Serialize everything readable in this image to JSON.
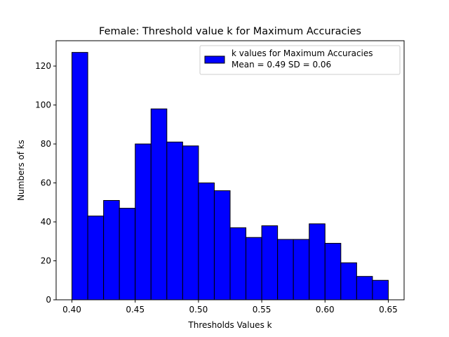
{
  "chart_data": {
    "type": "bar",
    "title": "Female: Threshold value k for Maximum Accuracies",
    "xlabel": "Thresholds Values k",
    "ylabel": "Numbers of ks",
    "bin_edges": [
      0.4,
      0.4125,
      0.425,
      0.4375,
      0.45,
      0.4625,
      0.475,
      0.4875,
      0.5,
      0.5125,
      0.525,
      0.5375,
      0.55,
      0.5625,
      0.575,
      0.5875,
      0.6,
      0.6125,
      0.625,
      0.6375,
      0.65
    ],
    "values": [
      127,
      43,
      51,
      47,
      80,
      98,
      81,
      79,
      60,
      56,
      37,
      32,
      38,
      31,
      31,
      39,
      29,
      19,
      12,
      10
    ],
    "xlim": [
      0.3875,
      0.6625
    ],
    "ylim": [
      0,
      133
    ],
    "xticks": [
      0.4,
      0.45,
      0.5,
      0.55,
      0.6,
      0.65
    ],
    "xtick_labels": [
      "0.40",
      "0.45",
      "0.50",
      "0.55",
      "0.60",
      "0.65"
    ],
    "yticks": [
      0,
      20,
      40,
      60,
      80,
      100,
      120
    ],
    "ytick_labels": [
      "0",
      "20",
      "40",
      "60",
      "80",
      "100",
      "120"
    ],
    "legend": {
      "placement": "top-right",
      "line1": "k values for Maximum Accuracies",
      "line2": "Mean = 0.49 SD = 0.06"
    },
    "colors": {
      "bar_fill": "#0000ff",
      "bar_edge": "#000000"
    },
    "grid": false
  }
}
